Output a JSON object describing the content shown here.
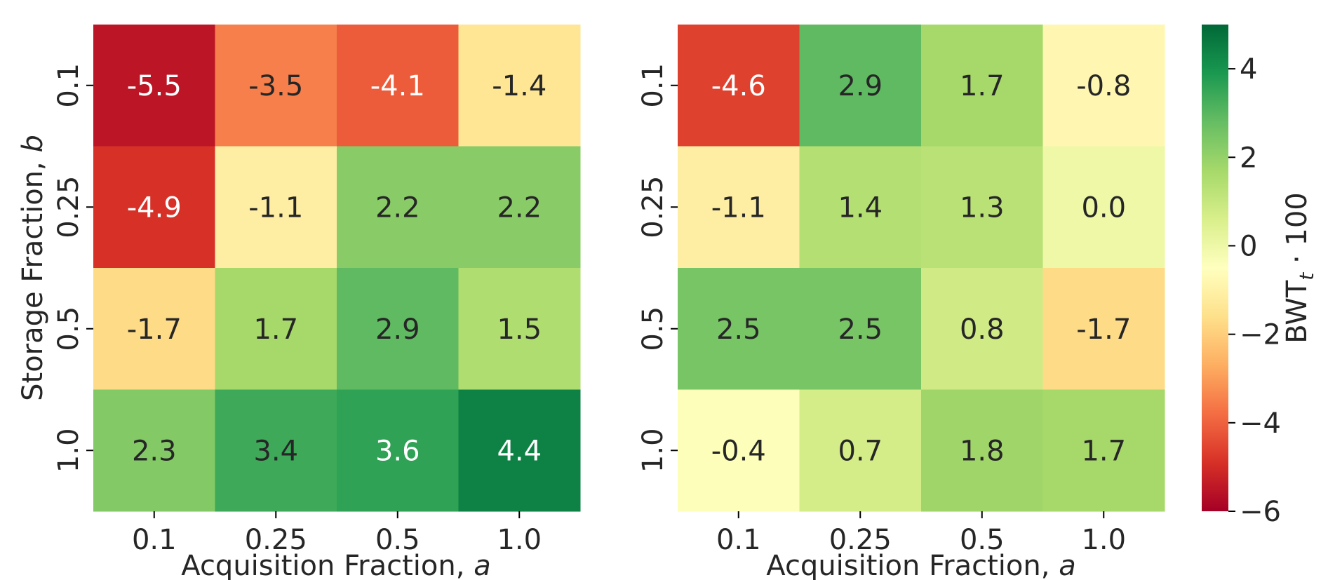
{
  "chart_data": [
    {
      "type": "heatmap",
      "title": "",
      "xlabel": "Acquisition Fraction, a",
      "xlabel_text": "Acquisition Fraction, ",
      "xlabel_var": "a",
      "ylabel": "Storage Fraction, b",
      "ylabel_text": "Storage Fraction, ",
      "ylabel_var": "b",
      "x_categories": [
        "0.1",
        "0.25",
        "0.5",
        "1.0"
      ],
      "y_categories": [
        "0.1",
        "0.25",
        "0.5",
        "1.0"
      ],
      "values": [
        [
          -5.5,
          -3.5,
          -4.1,
          -1.4
        ],
        [
          -4.9,
          -1.1,
          2.2,
          2.2
        ],
        [
          -1.7,
          1.7,
          2.9,
          1.5
        ],
        [
          2.3,
          3.4,
          3.6,
          4.4
        ]
      ],
      "annotations": [
        [
          "-5.5",
          "-3.5",
          "-4.1",
          "-1.4"
        ],
        [
          "-4.9",
          "-1.1",
          "2.2",
          "2.2"
        ],
        [
          "-1.7",
          "1.7",
          "2.9",
          "1.5"
        ],
        [
          "2.3",
          "3.4",
          "3.6",
          "4.4"
        ]
      ]
    },
    {
      "type": "heatmap",
      "title": "",
      "xlabel": "Acquisition Fraction, a",
      "xlabel_text": "Acquisition Fraction, ",
      "xlabel_var": "a",
      "ylabel": "",
      "x_categories": [
        "0.1",
        "0.25",
        "0.5",
        "1.0"
      ],
      "y_categories": [
        "0.1",
        "0.25",
        "0.5",
        "1.0"
      ],
      "values": [
        [
          -4.6,
          2.9,
          1.7,
          -0.8
        ],
        [
          -1.1,
          1.4,
          1.3,
          0.0
        ],
        [
          2.5,
          2.5,
          0.8,
          -1.7
        ],
        [
          -0.4,
          0.7,
          1.8,
          1.7
        ]
      ],
      "annotations": [
        [
          "-4.6",
          "2.9",
          "1.7",
          "-0.8"
        ],
        [
          "-1.1",
          "1.4",
          "1.3",
          "0.0"
        ],
        [
          "2.5",
          "2.5",
          "0.8",
          "-1.7"
        ],
        [
          "-0.4",
          "0.7",
          "1.8",
          "1.7"
        ]
      ]
    }
  ],
  "colorbar": {
    "label": "BWT_t · 100",
    "label_main": "BWT",
    "label_sub": "t",
    "label_tail": " · 100",
    "range": [
      -6,
      5
    ],
    "colormap": "RdYlGn",
    "ticks": [
      4,
      2,
      0,
      -2,
      -4,
      -6
    ],
    "tick_labels": [
      "4",
      "2",
      "0",
      "−2",
      "−4",
      "−6"
    ]
  },
  "colors": {
    "text_dark": "#262626",
    "text_light": "#ffffff",
    "axis": "#000000"
  }
}
